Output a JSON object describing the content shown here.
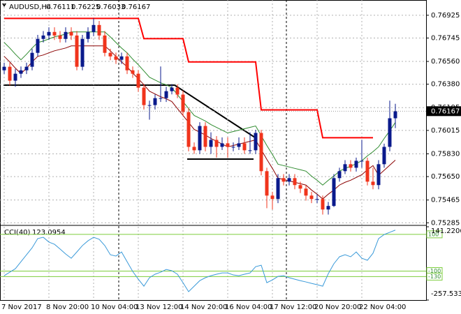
{
  "chart_data": [
    {
      "type": "candlestick",
      "title": "AUDUSD,H4",
      "categories": [
        "7 Nov 2017",
        null,
        null,
        null,
        null,
        null,
        null,
        null,
        "8 Nov 20:00",
        null,
        null,
        null,
        null,
        null,
        null,
        null,
        "10 Nov 04:00",
        null,
        null,
        null,
        null,
        null,
        null,
        null,
        "13 Nov 12:00",
        null,
        null,
        null,
        null,
        null,
        null,
        null,
        "14 Nov 20:00",
        null,
        null,
        null,
        null,
        null,
        null,
        null,
        "16 Nov 04:00",
        null,
        null,
        null,
        null,
        null,
        null,
        null,
        "17 Nov 12:00",
        null,
        null,
        null,
        null,
        null,
        null,
        null,
        "20 Nov 20:00",
        null,
        null,
        null,
        null,
        null,
        null,
        null,
        "22 Nov 04:00",
        null,
        null,
        null,
        null,
        null,
        null
      ],
      "open": [
        0.7649,
        0.76518,
        0.76408,
        0.76463,
        0.7649,
        0.76518,
        0.76628,
        0.76738,
        0.76765,
        0.76793,
        0.76765,
        0.76738,
        0.76793,
        0.76765,
        0.76518,
        0.76738,
        0.76793,
        0.76848,
        0.76765,
        0.76628,
        0.766,
        0.76573,
        0.766,
        0.7649,
        0.76463,
        0.76353,
        0.76215,
        0.76215,
        0.7627,
        0.7627,
        0.76325,
        0.76353,
        0.76298,
        0.7616,
        0.75885,
        0.75858,
        0.7605,
        0.75885,
        0.7594,
        0.75885,
        0.75913,
        0.75885,
        0.75885,
        0.75913,
        0.75858,
        0.75858,
        0.75995,
        0.75693,
        0.755,
        0.75473,
        0.75638,
        0.7561,
        0.75638,
        0.75583,
        0.75555,
        0.755,
        0.75473,
        0.75473,
        0.7539,
        0.75418,
        0.75638,
        0.75693,
        0.75748,
        0.7572,
        0.75775,
        0.75775,
        0.7561,
        0.75583,
        0.75748,
        0.75885,
        0.76111
      ],
      "high": [
        0.7655,
        0.7655,
        0.765,
        0.7652,
        0.7655,
        0.7666,
        0.7677,
        0.768,
        0.7683,
        0.7683,
        0.768,
        0.7683,
        0.7683,
        0.768,
        0.7677,
        0.7683,
        0.769,
        0.7688,
        0.768,
        0.7666,
        0.7663,
        0.7663,
        0.7663,
        0.7652,
        0.7649,
        0.7638,
        0.7625,
        0.763,
        0.7652,
        0.7636,
        0.7638,
        0.7638,
        0.7633,
        0.7619,
        0.7592,
        0.7608,
        0.7608,
        0.76,
        0.7597,
        0.7596,
        0.7596,
        0.7592,
        0.7596,
        0.7596,
        0.76,
        0.7602,
        0.7602,
        0.7572,
        0.7553,
        0.7567,
        0.7567,
        0.7567,
        0.7567,
        0.7561,
        0.7558,
        0.7553,
        0.7551,
        0.755,
        0.7545,
        0.7567,
        0.7572,
        0.7578,
        0.7578,
        0.758,
        0.7594,
        0.758,
        0.7572,
        0.7578,
        0.7591,
        0.7625,
        0.76225
      ],
      "low": [
        0.7646,
        0.7637,
        0.7636,
        0.7643,
        0.7646,
        0.7649,
        0.766,
        0.7671,
        0.7673,
        0.7673,
        0.7671,
        0.7671,
        0.7673,
        0.7649,
        0.7649,
        0.7671,
        0.7676,
        0.7673,
        0.766,
        0.7657,
        0.7654,
        0.7654,
        0.7646,
        0.7643,
        0.7632,
        0.7618,
        0.761,
        0.7618,
        0.7624,
        0.7624,
        0.763,
        0.7627,
        0.7613,
        0.7585,
        0.7583,
        0.7583,
        0.7585,
        0.7583,
        0.758,
        0.7586,
        0.758,
        0.7585,
        0.7586,
        0.7583,
        0.7583,
        0.7583,
        0.7566,
        0.754,
        0.7539,
        0.7544,
        0.7558,
        0.7558,
        0.7555,
        0.7552,
        0.7546,
        0.7544,
        0.7544,
        0.7535,
        0.7535,
        0.7541,
        0.7561,
        0.7567,
        0.7569,
        0.7569,
        0.7572,
        0.7558,
        0.7555,
        0.7555,
        0.7572,
        0.7585,
        0.76033
      ],
      "close": [
        0.76518,
        0.76408,
        0.76463,
        0.7649,
        0.76518,
        0.76628,
        0.76738,
        0.76765,
        0.76793,
        0.76765,
        0.76738,
        0.76793,
        0.76765,
        0.76518,
        0.76738,
        0.76793,
        0.76848,
        0.76765,
        0.76628,
        0.766,
        0.76573,
        0.766,
        0.7649,
        0.76463,
        0.76353,
        0.76215,
        0.76215,
        0.7627,
        0.7627,
        0.76325,
        0.76353,
        0.76298,
        0.7616,
        0.75885,
        0.75858,
        0.7605,
        0.75885,
        0.7594,
        0.75885,
        0.75913,
        0.75885,
        0.75885,
        0.75913,
        0.75858,
        0.75858,
        0.75995,
        0.75693,
        0.755,
        0.75473,
        0.75638,
        0.7561,
        0.75638,
        0.75583,
        0.75555,
        0.755,
        0.75473,
        0.75473,
        0.7539,
        0.75418,
        0.75638,
        0.75693,
        0.75748,
        0.7572,
        0.75775,
        0.75775,
        0.7561,
        0.75583,
        0.75748,
        0.75885,
        0.76111,
        0.76167
      ],
      "up_color": "#0a1a8c",
      "down_color": "#f0341c",
      "ylim": [
        0.7527,
        0.7704
      ],
      "yticks": [
        0.76925,
        0.76745,
        {
          "value": 0.7656,
          "label": "0.76560"
        },
        {
          "value": 0.7638,
          "label": "0.76380"
        },
        0.76195,
        0.76015,
        {
          "value": 0.7583,
          "label": "0.75830"
        },
        {
          "value": 0.7565,
          "label": "0.75650"
        },
        0.75465,
        0.75285
      ],
      "grid": true,
      "indicators": [
        {
          "color": "#ff0000",
          "values": [
            0.769,
            0.769,
            0.769,
            0.769,
            0.769,
            0.769,
            0.769,
            0.769,
            0.769,
            0.769,
            0.769,
            0.769,
            0.769,
            0.769,
            0.769,
            0.769,
            0.769,
            0.769,
            0.769,
            0.769,
            0.769,
            0.769,
            0.769,
            0.769,
            0.769,
            0.7674,
            0.7674,
            0.7674,
            0.7674,
            0.7674,
            0.7674,
            0.7674,
            0.7674,
            0.76556,
            0.76556,
            0.76556,
            0.76556,
            0.76556,
            0.76556,
            0.76556,
            0.76556,
            0.76556,
            0.76556,
            0.76556,
            0.76556,
            0.76556,
            0.76177,
            0.76177,
            0.76177,
            0.76177,
            0.76177,
            0.76177,
            0.76177,
            0.76177,
            0.76177,
            0.76177,
            0.76177,
            0.75957,
            0.75957,
            0.75957,
            0.75957,
            0.75957,
            0.75957,
            0.75957,
            0.75957,
            0.75957,
            0.75957,
            null,
            null,
            null,
            null
          ]
        },
        {
          "color": "#2e8b2e",
          "values": [
            0.7671,
            0.76666,
            0.76617,
            0.76573,
            0.76617,
            0.76666,
            0.7671,
            0.76721,
            0.76738,
            0.76754,
            0.76765,
            0.76776,
            0.76793,
            0.76793,
            0.76793,
            0.76793,
            0.76793,
            0.76793,
            0.76793,
            0.76754,
            0.7671,
            0.76666,
            0.76628,
            0.76578,
            0.76534,
            0.76485,
            0.76435,
            0.76413,
            0.76391,
            0.76375,
            0.76353,
            0.76298,
            0.76243,
            0.76188,
            0.76133,
            0.76111,
            0.76089,
            0.76061,
            0.76039,
            0.76017,
            0.75995,
            0.76006,
            0.76017,
            0.76028,
            0.76039,
            0.7605,
            0.75973,
            0.75896,
            0.75825,
            0.75748,
            0.75737,
            0.75726,
            0.75715,
            0.75704,
            0.75693,
            0.75654,
            0.75621,
            0.75583,
            0.75621,
            0.75654,
            0.75693,
            0.75715,
            0.75731,
            0.75753,
            0.75775,
            0.75814,
            0.75847,
            0.75885,
            0.75951,
            0.76012,
            0.76078
          ]
        },
        {
          "color": "#8b0000",
          "values": [
            0.766,
            0.76556,
            0.76507,
            0.76463,
            0.76507,
            0.76556,
            0.766,
            0.76611,
            0.76628,
            0.76644,
            0.76655,
            0.76666,
            0.76683,
            0.76683,
            0.76683,
            0.76683,
            0.76683,
            0.76683,
            0.76683,
            0.76644,
            0.766,
            0.76556,
            0.76518,
            0.76468,
            0.76424,
            0.76375,
            0.76325,
            0.76303,
            0.76281,
            0.76265,
            0.76243,
            0.76188,
            0.76133,
            0.76078,
            0.76023,
            0.76001,
            0.75979,
            0.75951,
            0.75929,
            0.75907,
            0.75885,
            0.75896,
            0.75907,
            0.75918,
            0.75929,
            0.7594,
            0.75863,
            0.75786,
            0.75715,
            0.75638,
            0.75627,
            0.75616,
            0.75605,
            0.75594,
            0.75583,
            0.75544,
            0.75511,
            0.75473,
            0.75511,
            0.75544,
            0.75583,
            0.75605,
            0.75621,
            0.75643,
            0.75665,
            0.75704,
            0.75737,
            0.7566,
            0.757,
            0.7574,
            0.7578
          ]
        }
      ]
    },
    {
      "type": "line",
      "title": "CCI(40)",
      "values": [
        -125,
        -106,
        -87,
        -49,
        -11,
        27,
        77,
        84,
        58,
        46,
        20,
        -7,
        -30,
        4,
        39,
        65,
        84,
        73,
        39,
        -11,
        -18,
        4,
        -49,
        -102,
        -144,
        -182,
        -136,
        -117,
        -106,
        -91,
        -98,
        -117,
        -163,
        -212,
        -182,
        -152,
        -136,
        -125,
        -117,
        -110,
        -110,
        -121,
        -125,
        -117,
        -110,
        -76,
        -68,
        -163,
        -148,
        -129,
        -125,
        -136,
        -144,
        -152,
        -159,
        -167,
        -174,
        -182,
        -114,
        -60,
        -22,
        -11,
        -22,
        4,
        -30,
        -41,
        -3,
        77,
        99,
        111,
        123.0954
      ],
      "color": "#3a9ad9",
      "level_color": "#7ccd3c",
      "ylim": [
        -257.5336,
        141.2206
      ],
      "yticks": [
        141.2206,
        -257.5336
      ],
      "levels": [
        100,
        -100,
        -130
      ]
    }
  ]
}
